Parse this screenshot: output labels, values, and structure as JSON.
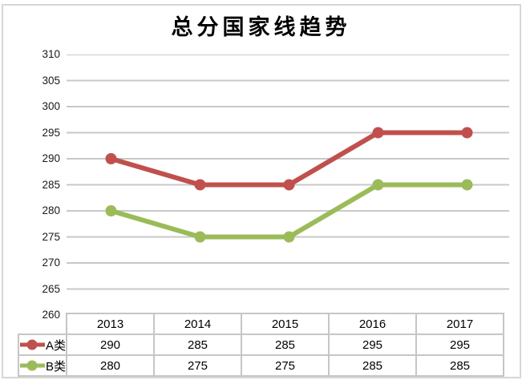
{
  "title": "总分国家线趋势",
  "colors": {
    "gridline": "#c8c8c8",
    "table_border": "#c6c6c6",
    "outer_border": "#d6d6d6",
    "series_a": "#c0504d",
    "series_b": "#9bbb59",
    "text": "#000000"
  },
  "chart_data": {
    "type": "line",
    "title": "总分国家线趋势",
    "categories": [
      "2013",
      "2014",
      "2015",
      "2016",
      "2017"
    ],
    "series": [
      {
        "name": "A类",
        "color": "#c0504d",
        "values": [
          290,
          285,
          285,
          295,
          295
        ]
      },
      {
        "name": "B类",
        "color": "#9bbb59",
        "values": [
          280,
          275,
          275,
          285,
          285
        ]
      }
    ],
    "xlabel": "",
    "ylabel": "",
    "ylim": [
      260,
      310
    ],
    "yticks": [
      310,
      305,
      300,
      295,
      290,
      285,
      280,
      275,
      270,
      265,
      260
    ],
    "grid": true,
    "legend_position": "data-table-left",
    "marker": "circle"
  }
}
